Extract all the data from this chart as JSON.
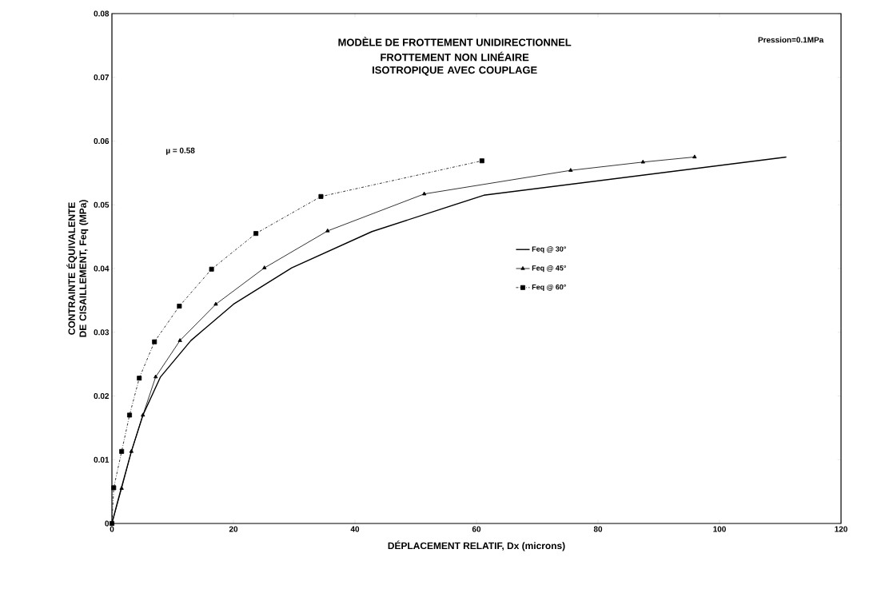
{
  "chart_data": {
    "type": "line",
    "title": "MODÈLE DE FROTTEMENT UNIDIRECTIONNEL",
    "subtitle": "FROTTEMENT NON LINÉAIRE ISOTROPIQUE AVEC COUPLAGE",
    "xlabel": "DÉPLACEMENT RELATIF, Dx (microns)",
    "ylabel": "CONTRAINTE ÉQUIVALENTE DE CISAILLEMENT, Feq (MPa)",
    "annotations": [
      "Pression=0.1MPa",
      "µ = 0.58"
    ],
    "xlim": [
      0,
      120
    ],
    "xticks": [
      0,
      20,
      40,
      60,
      80,
      100,
      120
    ],
    "ylim": [
      0,
      0.08
    ],
    "yticks": [
      0,
      0.01,
      0.02,
      0.03,
      0.04,
      0.05,
      0.06,
      0.07,
      0.08
    ],
    "grid": false,
    "legend": "center",
    "series": [
      {
        "name": "Feq @ 30°",
        "color": "#000000",
        "marker": "none",
        "line_style": "solid",
        "x": [
          0,
          0.9,
          3.2,
          5.1,
          8,
          13,
          20,
          29.6,
          42.8,
          61.2,
          111
        ],
        "values": [
          0,
          0.0033,
          0.0113,
          0.017,
          0.023,
          0.0287,
          0.0344,
          0.0401,
          0.0458,
          0.0515,
          0.0575
        ]
      },
      {
        "name": "Feq @ 45°",
        "color": "#000000",
        "marker": "triangle",
        "line_style": "solid",
        "x": [
          0,
          1.6,
          3.2,
          5.1,
          7.2,
          11.2,
          17.1,
          25.1,
          35.5,
          51.4,
          75.5,
          87.4,
          95.9
        ],
        "values": [
          0,
          0.0055,
          0.0113,
          0.017,
          0.023,
          0.0287,
          0.0344,
          0.0401,
          0.0459,
          0.0517,
          0.0554,
          0.0567,
          0.0575
        ]
      },
      {
        "name": "Feq @ 60°",
        "color": "#000000",
        "marker": "square",
        "line_style": "dashed",
        "x": [
          0,
          0.3,
          1.6,
          2.9,
          4.5,
          7.0,
          11.1,
          16.4,
          23.7,
          34.4,
          60.9
        ],
        "values": [
          0,
          0.0056,
          0.0113,
          0.017,
          0.0228,
          0.0285,
          0.0341,
          0.0399,
          0.0455,
          0.0513,
          0.0569
        ]
      }
    ]
  }
}
